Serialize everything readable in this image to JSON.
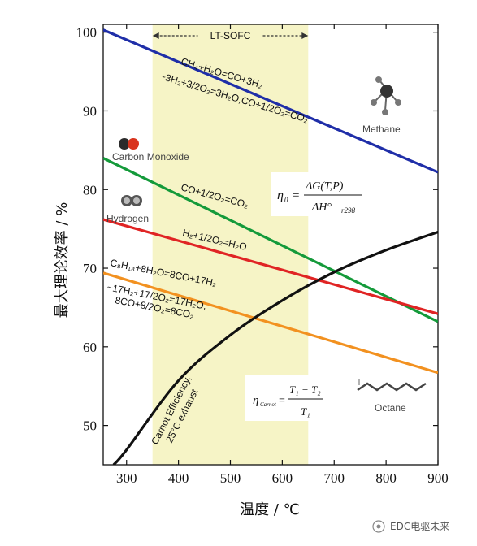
{
  "chart_data": {
    "type": "line",
    "xlabel": "温度 / ℃",
    "ylabel": "最大理论效率 / %",
    "xlim": [
      255,
      900
    ],
    "ylim": [
      45,
      101
    ],
    "xticks": [
      300,
      400,
      500,
      600,
      700,
      800,
      900
    ],
    "yticks": [
      50,
      60,
      70,
      80,
      90,
      100
    ],
    "band": {
      "label": "LT-SOFC",
      "x": [
        350,
        650
      ],
      "color": "#f6f4c6"
    },
    "series": [
      {
        "name": "CH4+H2O=CO+3H2 ~3H2+3/2O2=3H2O,CO+1/2O2=CO2",
        "color": "#1f2ea8",
        "points": [
          [
            255,
            100.3
          ],
          [
            900,
            82.2
          ]
        ]
      },
      {
        "name": "CO+1/2O2=CO2",
        "color": "#149a3a",
        "points": [
          [
            255,
            84.0
          ],
          [
            900,
            63.2
          ]
        ]
      },
      {
        "name": "H2+1/2O2=H2O",
        "color": "#e02424",
        "points": [
          [
            255,
            76.2
          ],
          [
            900,
            64.2
          ]
        ]
      },
      {
        "name": "C8H18+8H2O=8CO+17H2 ~17H2+17/2O2=17H2O, 8CO+8/2O2=8CO2",
        "color": "#f29120",
        "points": [
          [
            255,
            69.4
          ],
          [
            900,
            56.7
          ]
        ]
      },
      {
        "name": "Carnot Efficiency, 25°C exhaust",
        "color": "#111111",
        "points": [
          [
            275,
            45
          ],
          [
            300,
            46.9
          ],
          [
            400,
            55.7
          ],
          [
            500,
            61.5
          ],
          [
            600,
            65.9
          ],
          [
            700,
            69.5
          ],
          [
            800,
            72.3
          ],
          [
            900,
            74.6
          ]
        ]
      }
    ],
    "annotations": {
      "methane_eq1": "CH₄+H₂O=CO+3H₂",
      "methane_eq2": "~3H₂+3/2O₂=3H₂O,CO+1/2O₂=CO₂",
      "co_eq": "CO+1/2O₂=CO₂",
      "h2_eq": "H₂+1/2O₂=H₂O",
      "octane_eq1": "C₈H₁₈+8H₂O=8CO+17H₂",
      "octane_eq2": "~17H₂+17/2O₂=17H₂O,",
      "octane_eq3": "8CO+8/2O₂=8CO₂",
      "carnot1": "Carnot Efficiency,",
      "carnot2": "25°C exhaust",
      "methane": "Methane",
      "carbon_monoxide": "Carbon Monoxide",
      "hydrogen": "Hydrogen",
      "octane": "Octane",
      "eta_formula_top": "ΔG(T,P)",
      "eta_formula_bottom": "ΔH°",
      "eta_formula_sub": "r298",
      "eta_symbol": "η",
      "eta_sub": "0",
      "carnot_formula_lhs": "η",
      "carnot_formula_lhs_sub": "Carnot",
      "carnot_formula_top": "T₁ − T₂",
      "carnot_formula_bottom": "T₁"
    }
  },
  "watermark": "EDC电驱未来",
  "colors": {
    "ch4": "#1f2ea8",
    "co": "#149a3a",
    "h2": "#e02424",
    "octane": "#f29120",
    "carnot": "#111111",
    "band": "#f6f4c6"
  }
}
